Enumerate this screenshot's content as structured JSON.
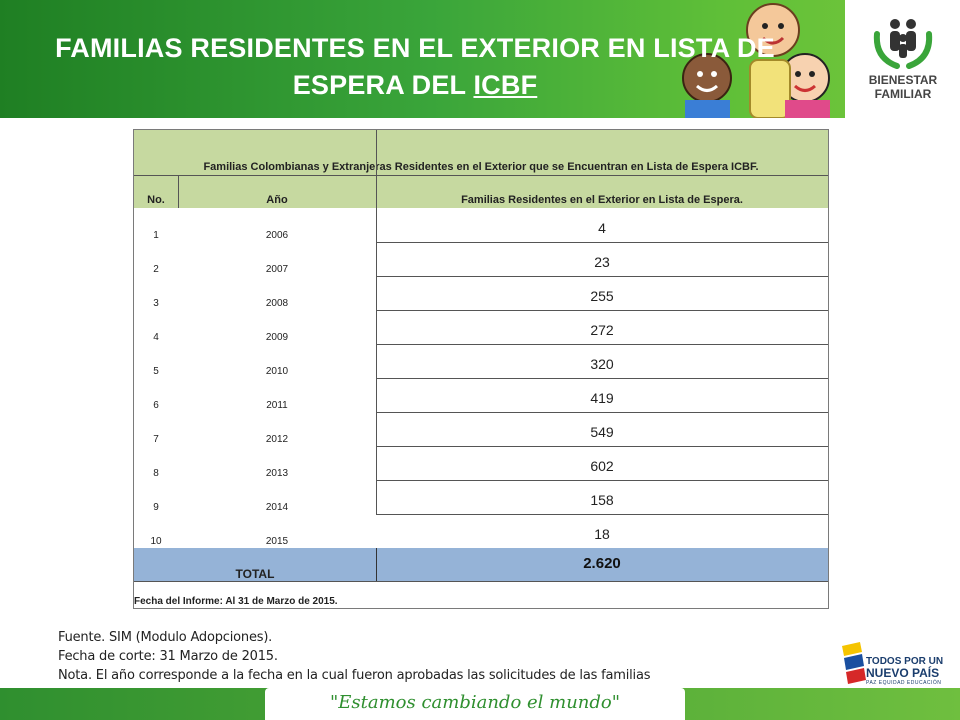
{
  "header": {
    "title_line1": "FAMILIAS RESIDENTES EN EL  EXTERIOR EN LISTA DE",
    "title_line2_a": "ESPERA DEL ",
    "title_line2_b": "ICBF",
    "brand": "BIENESTAR FAMILIAR",
    "brand_color": "#3aa53a"
  },
  "table": {
    "title": "Familias Colombianas y Extranjeras  Residentes  en el Exterior que se Encuentran  en Lista de Espera ICBF.",
    "columns": [
      "No.",
      "Año",
      "Familias Residentes  en el Exterior  en Lista de Espera."
    ],
    "rows": [
      {
        "no": "1",
        "year": "2006",
        "value": "4"
      },
      {
        "no": "2",
        "year": "2007",
        "value": "23"
      },
      {
        "no": "3",
        "year": "2008",
        "value": "255"
      },
      {
        "no": "4",
        "year": "2009",
        "value": "272"
      },
      {
        "no": "5",
        "year": "2010",
        "value": "320"
      },
      {
        "no": "6",
        "year": "2011",
        "value": "419"
      },
      {
        "no": "7",
        "year": "2012",
        "value": "549"
      },
      {
        "no": "8",
        "year": "2013",
        "value": "602"
      },
      {
        "no": "9",
        "year": "2014",
        "value": "158"
      },
      {
        "no": "10",
        "year": "2015",
        "value": "18"
      }
    ],
    "total_label": "TOTAL",
    "total_value": "2.620",
    "report_date": "Fecha del Informe:  Al 31 de Marzo de 2015.",
    "header_color": "#c6d9a0",
    "total_color": "#95b3d7"
  },
  "notes": {
    "line1": "Fuente. SIM (Modulo Adopciones).",
    "line2": "Fecha de corte: 31 Marzo de 2015.",
    "line3": "Nota. El año corresponde a la fecha en la cual fueron aprobadas las solicitudes de las familias"
  },
  "footer": {
    "slogan": "\"Estamos cambiando el mundo\"",
    "gov_line1": "TODOS POR UN",
    "gov_line2": "NUEVO PAÍS",
    "gov_line3": "PAZ  EQUIDAD  EDUCACIÓN"
  }
}
